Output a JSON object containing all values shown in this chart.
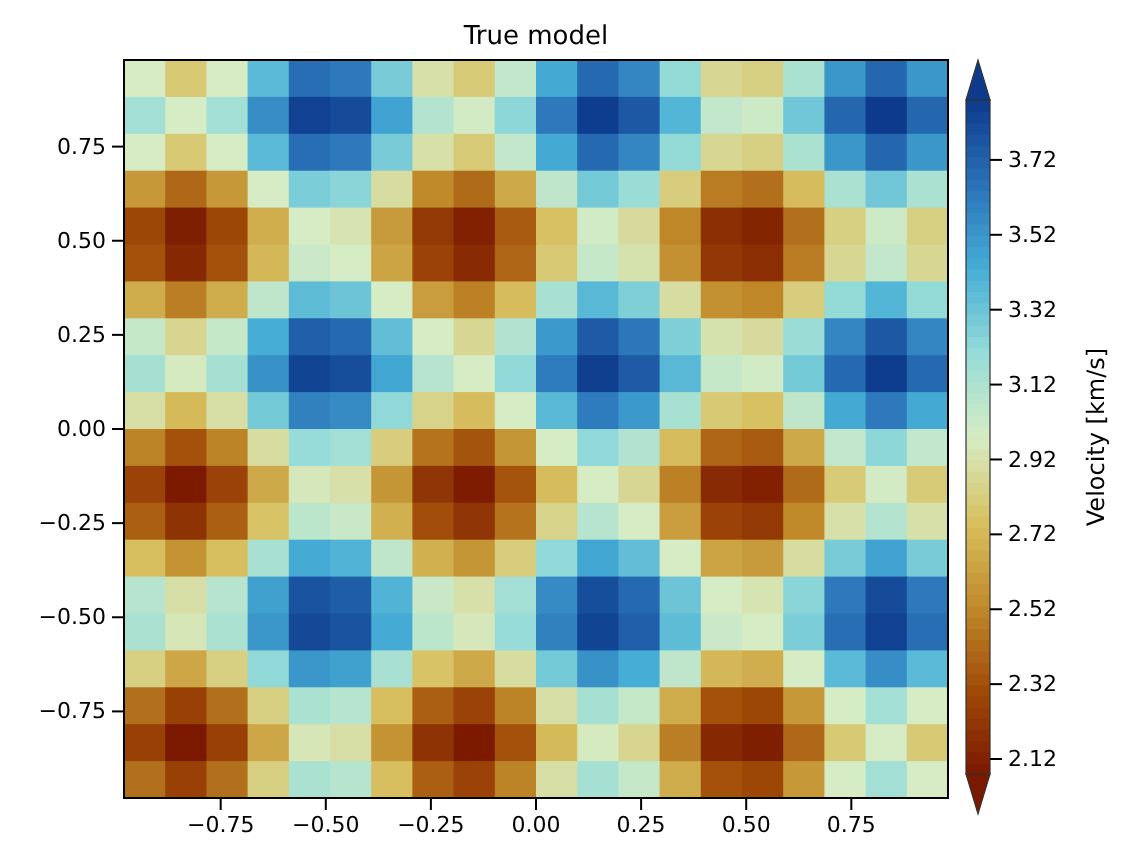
{
  "chart_data": {
    "type": "heatmap",
    "title": "True model",
    "clabel": "Velocity [km/s]",
    "x": [
      -0.931,
      -0.833,
      -0.735,
      -0.637,
      -0.539,
      -0.441,
      -0.343,
      -0.245,
      -0.147,
      -0.049,
      0.049,
      0.147,
      0.245,
      0.343,
      0.441,
      0.539,
      0.637,
      0.735,
      0.833,
      0.931
    ],
    "y": [
      0.931,
      0.833,
      0.735,
      0.637,
      0.539,
      0.441,
      0.343,
      0.245,
      0.147,
      0.049,
      -0.049,
      -0.147,
      -0.245,
      -0.343,
      -0.441,
      -0.539,
      -0.637,
      -0.735,
      -0.833,
      -0.931
    ],
    "xlim": [
      -0.98,
      0.98
    ],
    "xticks": [
      -0.75,
      {
        "value": -0.5,
        "label": "−0.50"
      },
      -0.25,
      {
        "value": 0,
        "label": "0.00"
      },
      0.25,
      {
        "value": 0.5,
        "label": "0.50"
      },
      0.75
    ],
    "ylim": [
      -0.98,
      0.98
    ],
    "yticks": [
      -0.75,
      {
        "value": -0.5,
        "label": "−0.50"
      },
      -0.25,
      {
        "value": 0,
        "label": "0.00"
      },
      0.25,
      {
        "value": 0.5,
        "label": "0.50"
      },
      0.75
    ],
    "clim": [
      2.08,
      3.88
    ],
    "cticks": [
      2.12,
      2.32,
      2.52,
      2.72,
      2.92,
      3.12,
      3.32,
      3.52,
      3.72
    ],
    "cells": [
      [
        2.98,
        2.8,
        2.98,
        3.37,
        3.67,
        3.63,
        3.29,
        2.92,
        2.81,
        3.05,
        3.45,
        3.69,
        3.58,
        3.21,
        2.87,
        2.83,
        3.13,
        3.52,
        3.7,
        3.52
      ],
      [
        3.16,
        2.98,
        3.16,
        3.55,
        3.85,
        3.81,
        3.47,
        3.1,
        2.99,
        3.23,
        3.63,
        3.87,
        3.76,
        3.39,
        3.05,
        3.01,
        3.31,
        3.7,
        3.88,
        3.7
      ],
      [
        2.98,
        2.8,
        2.98,
        3.37,
        3.67,
        3.63,
        3.29,
        2.92,
        2.81,
        3.05,
        3.45,
        3.69,
        3.58,
        3.21,
        2.87,
        2.83,
        3.13,
        3.52,
        3.7,
        3.52
      ],
      [
        2.59,
        2.41,
        2.59,
        2.98,
        3.28,
        3.24,
        2.9,
        2.53,
        2.42,
        2.66,
        3.06,
        3.3,
        3.19,
        2.82,
        2.48,
        2.44,
        2.74,
        3.13,
        3.31,
        3.13
      ],
      [
        2.29,
        2.11,
        2.29,
        2.68,
        2.98,
        2.94,
        2.6,
        2.23,
        2.12,
        2.36,
        2.76,
        3.0,
        2.89,
        2.52,
        2.18,
        2.14,
        2.44,
        2.83,
        3.01,
        2.83
      ],
      [
        2.33,
        2.15,
        2.33,
        2.72,
        3.02,
        2.98,
        2.64,
        2.27,
        2.16,
        2.4,
        2.8,
        3.04,
        2.93,
        2.56,
        2.22,
        2.18,
        2.48,
        2.87,
        3.05,
        2.87
      ],
      [
        2.67,
        2.49,
        2.67,
        3.06,
        3.36,
        3.32,
        2.98,
        2.61,
        2.5,
        2.74,
        3.14,
        3.38,
        3.27,
        2.9,
        2.56,
        2.52,
        2.82,
        3.21,
        3.39,
        3.21
      ],
      [
        3.04,
        2.86,
        3.04,
        3.43,
        3.73,
        3.69,
        3.35,
        2.98,
        2.87,
        3.11,
        3.51,
        3.75,
        3.64,
        3.27,
        2.93,
        2.89,
        3.19,
        3.58,
        3.76,
        3.58
      ],
      [
        3.15,
        2.97,
        3.15,
        3.54,
        3.84,
        3.8,
        3.46,
        3.09,
        2.98,
        3.22,
        3.62,
        3.86,
        3.75,
        3.38,
        3.04,
        3.0,
        3.3,
        3.69,
        3.87,
        3.69
      ],
      [
        2.91,
        2.73,
        2.91,
        3.3,
        3.6,
        3.56,
        3.22,
        2.85,
        2.74,
        2.98,
        3.38,
        3.62,
        3.51,
        3.14,
        2.8,
        2.76,
        3.06,
        3.45,
        3.63,
        3.45
      ],
      [
        2.51,
        2.33,
        2.51,
        2.9,
        3.2,
        3.16,
        2.82,
        2.45,
        2.34,
        2.58,
        2.98,
        3.22,
        3.11,
        2.74,
        2.4,
        2.36,
        2.66,
        3.05,
        3.23,
        3.05
      ],
      [
        2.27,
        2.09,
        2.27,
        2.66,
        2.96,
        2.92,
        2.58,
        2.21,
        2.1,
        2.34,
        2.74,
        2.98,
        2.87,
        2.5,
        2.16,
        2.12,
        2.42,
        2.81,
        2.99,
        2.81
      ],
      [
        2.38,
        2.2,
        2.38,
        2.77,
        3.07,
        3.03,
        2.69,
        2.32,
        2.21,
        2.45,
        2.85,
        3.09,
        2.98,
        2.61,
        2.27,
        2.23,
        2.53,
        2.92,
        3.1,
        2.92
      ],
      [
        2.75,
        2.57,
        2.75,
        3.14,
        3.44,
        3.4,
        3.06,
        2.69,
        2.58,
        2.82,
        3.22,
        3.46,
        3.35,
        2.98,
        2.64,
        2.6,
        2.9,
        3.29,
        3.47,
        3.29
      ],
      [
        3.09,
        2.91,
        3.09,
        3.48,
        3.78,
        3.74,
        3.4,
        3.03,
        2.92,
        3.16,
        3.56,
        3.8,
        3.69,
        3.32,
        2.98,
        2.94,
        3.24,
        3.63,
        3.81,
        3.63
      ],
      [
        3.13,
        2.95,
        3.13,
        3.52,
        3.82,
        3.78,
        3.44,
        3.07,
        2.96,
        3.2,
        3.6,
        3.84,
        3.73,
        3.36,
        3.02,
        2.98,
        3.28,
        3.67,
        3.85,
        3.67
      ],
      [
        2.83,
        2.65,
        2.83,
        3.22,
        3.52,
        3.48,
        3.14,
        2.77,
        2.66,
        2.9,
        3.3,
        3.54,
        3.43,
        3.06,
        2.72,
        2.68,
        2.98,
        3.37,
        3.55,
        3.37
      ],
      [
        2.44,
        2.26,
        2.44,
        2.83,
        3.13,
        3.09,
        2.75,
        2.38,
        2.27,
        2.51,
        2.91,
        3.15,
        3.04,
        2.67,
        2.33,
        2.29,
        2.59,
        2.98,
        3.16,
        2.98
      ],
      [
        2.26,
        2.08,
        2.26,
        2.65,
        2.95,
        2.91,
        2.57,
        2.2,
        2.09,
        2.33,
        2.73,
        2.97,
        2.86,
        2.49,
        2.15,
        2.11,
        2.41,
        2.8,
        2.98,
        2.8
      ],
      [
        2.44,
        2.26,
        2.44,
        2.83,
        3.13,
        3.09,
        2.75,
        2.38,
        2.27,
        2.51,
        2.91,
        3.15,
        3.04,
        2.67,
        2.33,
        2.29,
        2.59,
        2.98,
        3.16,
        2.98
      ]
    ]
  }
}
